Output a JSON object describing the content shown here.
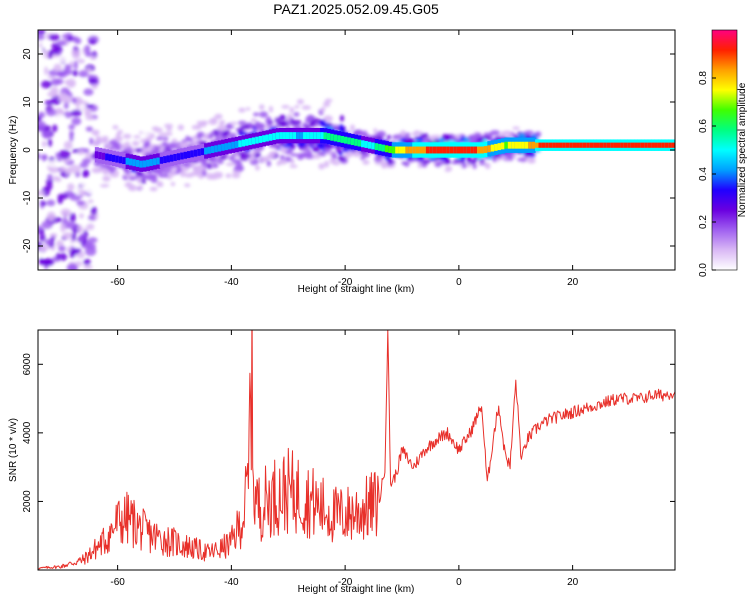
{
  "title": "PAZ1.2025.052.09.45.G05",
  "chart_data": [
    {
      "type": "heatmap",
      "xlabel": "Height of straight line (km)",
      "ylabel": "Frequency (Hz)",
      "xlim": [
        -74,
        38
      ],
      "ylim": [
        -25,
        25
      ],
      "x_ticks": [
        -60,
        -40,
        -20,
        0,
        20
      ],
      "y_ticks": [
        -20,
        -10,
        0,
        10,
        20
      ],
      "colorbar": {
        "label": "Normalized spectral amplitude",
        "range": [
          0,
          1
        ],
        "ticks": [
          0.0,
          0.2,
          0.4,
          0.6,
          0.8
        ],
        "colors": [
          "#ffffff",
          "#d9b8f5",
          "#a060f0",
          "#6a00e0",
          "#2000ff",
          "#00a0ff",
          "#00ffff",
          "#00ff80",
          "#40ff00",
          "#ffff00",
          "#ffa000",
          "#ff2000",
          "#ff0080"
        ]
      },
      "ridge": {
        "x": [
          -64,
          -60,
          -56,
          -52,
          -48,
          -44,
          -40,
          -36,
          -32,
          -28,
          -24,
          -20,
          -16,
          -12,
          -8,
          -4,
          0,
          4,
          8,
          12,
          16,
          20,
          24,
          28,
          32,
          36,
          38
        ],
        "y": [
          -1,
          -2,
          -3,
          -2,
          -1,
          0,
          1,
          2,
          3,
          3,
          3,
          2,
          1,
          0,
          0,
          0,
          0,
          0,
          1,
          1,
          1,
          1,
          1,
          1,
          1,
          1,
          1
        ],
        "amplitude": [
          0.25,
          0.35,
          0.45,
          0.35,
          0.3,
          0.4,
          0.45,
          0.5,
          0.5,
          0.45,
          0.55,
          0.6,
          0.5,
          0.7,
          0.85,
          0.9,
          0.95,
          0.85,
          0.7,
          0.8,
          0.95,
          0.95,
          0.95,
          0.95,
          0.95,
          0.95,
          0.95
        ]
      }
    },
    {
      "type": "line",
      "xlabel": "Height of straight line (km)",
      "ylabel": "SNR (10 * v/v)",
      "xlim": [
        -74,
        38
      ],
      "ylim": [
        0,
        7000
      ],
      "x_ticks": [
        -60,
        -40,
        -20,
        0,
        20
      ],
      "y_ticks": [
        2000,
        4000,
        6000
      ],
      "series": [
        {
          "color": "#e8302a",
          "x": [
            -74,
            -70,
            -66,
            -64,
            -62,
            -60,
            -58,
            -56,
            -54,
            -52,
            -50,
            -48,
            -46,
            -44,
            -42,
            -40,
            -38,
            -37,
            -36.5,
            -36,
            -35,
            -34,
            -32,
            -30,
            -28,
            -26,
            -24,
            -22,
            -20,
            -18,
            -16,
            -14,
            -13,
            -12.5,
            -12,
            -11,
            -10,
            -8,
            -6,
            -4,
            -2,
            0,
            2,
            4,
            5,
            6,
            7,
            8,
            9,
            10,
            11,
            12,
            14,
            16,
            18,
            20,
            22,
            24,
            26,
            28,
            30,
            32,
            34,
            36,
            38
          ],
          "y": [
            50,
            100,
            300,
            600,
            900,
            1400,
            1500,
            1200,
            1000,
            900,
            800,
            700,
            600,
            500,
            600,
            800,
            1500,
            2500,
            6200,
            2200,
            1800,
            2000,
            2200,
            2300,
            2200,
            2000,
            1800,
            1600,
            1600,
            1700,
            1800,
            2000,
            3000,
            7000,
            2500,
            2800,
            3500,
            3000,
            3500,
            3800,
            4000,
            3500,
            4000,
            4800,
            2500,
            3800,
            4800,
            3500,
            3000,
            5500,
            3200,
            3800,
            4200,
            4400,
            4500,
            4600,
            4700,
            4800,
            4900,
            5000,
            5000,
            5000,
            5100,
            5100,
            5200
          ]
        }
      ]
    }
  ]
}
